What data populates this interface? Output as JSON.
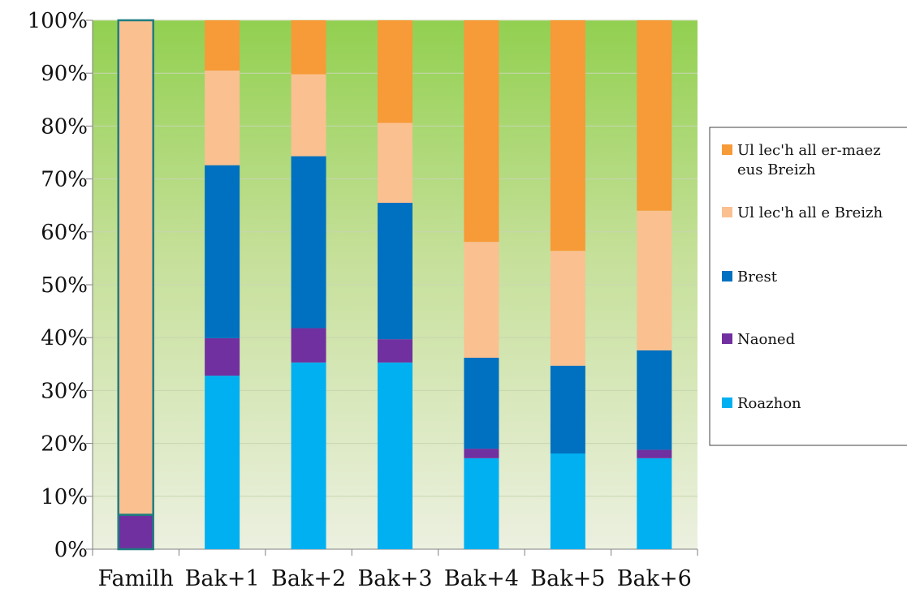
{
  "chart_data": {
    "type": "bar",
    "stacked": true,
    "normalized": true,
    "categories": [
      "Familh",
      "Bak+1",
      "Bak+2",
      "Bak+3",
      "Bak+4",
      "Bak+5",
      "Bak+6"
    ],
    "series": [
      {
        "name": "Roazhon",
        "color": "#00b0f0",
        "values": [
          0.0,
          32.8,
          35.3,
          35.3,
          17.2,
          18.1,
          17.2
        ]
      },
      {
        "name": "Naoned",
        "color": "#7030a0",
        "values": [
          6.5,
          7.1,
          6.5,
          4.4,
          1.8,
          0.0,
          1.6
        ]
      },
      {
        "name": "Brest",
        "color": "#0070c0",
        "values": [
          0.0,
          32.7,
          32.5,
          25.8,
          17.2,
          16.6,
          18.8
        ]
      },
      {
        "name": "Ul lec'h all e Breizh",
        "color": "#fac090",
        "values": [
          93.5,
          17.9,
          15.5,
          15.1,
          21.9,
          21.7,
          26.4
        ]
      },
      {
        "name": "Ul lec'h all er-maez eus Breizh",
        "legend_lines": [
          "Ul lec'h all er-maez",
          "eus Breizh"
        ],
        "color": "#f79a38",
        "values": [
          0.0,
          9.5,
          10.2,
          19.4,
          41.9,
          43.6,
          36.0
        ]
      }
    ],
    "y_ticks": [
      "0%",
      "10%",
      "20%",
      "30%",
      "40%",
      "50%",
      "60%",
      "70%",
      "80%",
      "90%",
      "100%"
    ],
    "ylim": [
      0,
      100
    ],
    "grid": true,
    "legend_position": "right",
    "highlighted_category": "Familh",
    "highlight_color": "#1f7d80"
  }
}
